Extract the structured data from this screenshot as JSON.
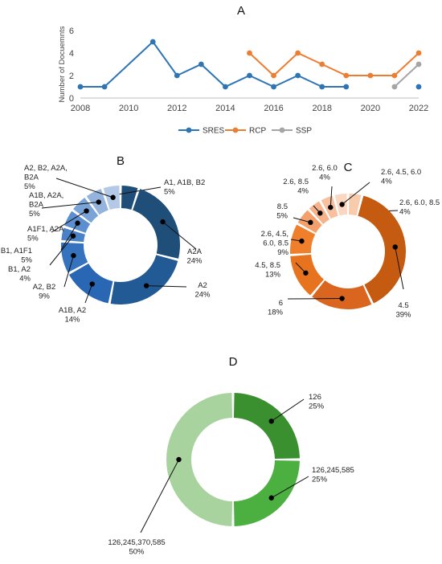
{
  "chart_data": [
    {
      "panel": "A",
      "type": "line",
      "ylabel": "Number of Docuemnts",
      "xlabel": "",
      "xlim": [
        2008,
        2022
      ],
      "ylim": [
        0,
        6
      ],
      "x_ticks": [
        2008,
        2010,
        2012,
        2014,
        2016,
        2018,
        2020,
        2022
      ],
      "y_ticks": [
        0,
        2,
        4,
        6
      ],
      "grid": false,
      "legend": "bottom",
      "series": [
        {
          "name": "SRES",
          "color": "#2e75b6",
          "segments": [
            [
              [
                2008,
                1
              ],
              [
                2009,
                1
              ],
              [
                2011,
                5
              ],
              [
                2012,
                2
              ],
              [
                2013,
                3
              ],
              [
                2014,
                1
              ],
              [
                2015,
                2
              ],
              [
                2016,
                1
              ],
              [
                2017,
                2
              ],
              [
                2018,
                1
              ],
              [
                2019,
                1
              ]
            ],
            [
              [
                2022,
                1
              ]
            ]
          ]
        },
        {
          "name": "RCP",
          "color": "#ed7d31",
          "segments": [
            [
              [
                2015,
                4
              ],
              [
                2016,
                2
              ],
              [
                2017,
                4
              ],
              [
                2018,
                3
              ],
              [
                2019,
                2
              ],
              [
                2020,
                2
              ],
              [
                2021,
                2
              ],
              [
                2022,
                4
              ]
            ]
          ]
        },
        {
          "name": "SSP",
          "color": "#a5a5a5",
          "segments": [
            [
              [
                2021,
                1
              ],
              [
                2022,
                3
              ]
            ]
          ]
        }
      ]
    },
    {
      "panel": "B",
      "type": "pie",
      "slices": [
        {
          "label": "A1, A1B, B2",
          "percent": "5%",
          "value": 5,
          "color": "#1f4e79"
        },
        {
          "label": "A2A",
          "percent": "24%",
          "value": 24,
          "color": "#1f4e79"
        },
        {
          "label": "A2",
          "percent": "24%",
          "value": 24,
          "color": "#215a95"
        },
        {
          "label": "A1B, A2",
          "percent": "14%",
          "value": 14,
          "color": "#2966b3"
        },
        {
          "label": "A2, B2",
          "percent": "9%",
          "value": 9,
          "color": "#3573bf"
        },
        {
          "label": "B1, A2",
          "percent": "4%",
          "value": 4,
          "color": "#4a82c8"
        },
        {
          "label": "B1, A1F1",
          "percent": "5%",
          "value": 5,
          "color": "#5b8fd0"
        },
        {
          "label": "A1F1, A2A",
          "percent": "5%",
          "value": 5,
          "color": "#7aa3d8"
        },
        {
          "label": "A1B, A2A, B2A",
          "percent": "5%",
          "value": 5,
          "color": "#94b4de"
        },
        {
          "label": "A2, B2, A2A, B2A",
          "percent": "5%",
          "value": 5,
          "color": "#b3c9e7"
        }
      ]
    },
    {
      "panel": "C",
      "type": "pie",
      "slices": [
        {
          "label": "2.6, 6.0, 8.5",
          "percent": "4%",
          "value": 4,
          "color": "#f8cbad"
        },
        {
          "label": "4.5",
          "percent": "39%",
          "value": 39,
          "color": "#c55a11"
        },
        {
          "label": "6",
          "percent": "18%",
          "value": 18,
          "color": "#d9651e"
        },
        {
          "label": "4.5, 8.5",
          "percent": "13%",
          "value": 13,
          "color": "#e8731f"
        },
        {
          "label": "2.6, 4.5, 6.0, 8.5",
          "percent": "9%",
          "value": 9,
          "color": "#f07f2c"
        },
        {
          "label": "8.5",
          "percent": "5%",
          "value": 5,
          "color": "#f4a06b"
        },
        {
          "label": "2.6, 8.5",
          "percent": "4%",
          "value": 4,
          "color": "#f6b389"
        },
        {
          "label": "2.6, 6.0",
          "percent": "4%",
          "value": 4,
          "color": "#f8c09f"
        },
        {
          "label": "2.6, 4.5, 6.0",
          "percent": "4%",
          "value": 4,
          "color": "#fbd6c0"
        }
      ]
    },
    {
      "panel": "D",
      "type": "pie",
      "slices": [
        {
          "label": "126",
          "percent": "25%",
          "value": 25,
          "color": "#3a8f2f"
        },
        {
          "label": "126,245,585",
          "percent": "25%",
          "value": 25,
          "color": "#4bb040"
        },
        {
          "label": "126,245,370,585",
          "percent": "50%",
          "value": 50,
          "color": "#a9d39e"
        }
      ]
    }
  ]
}
